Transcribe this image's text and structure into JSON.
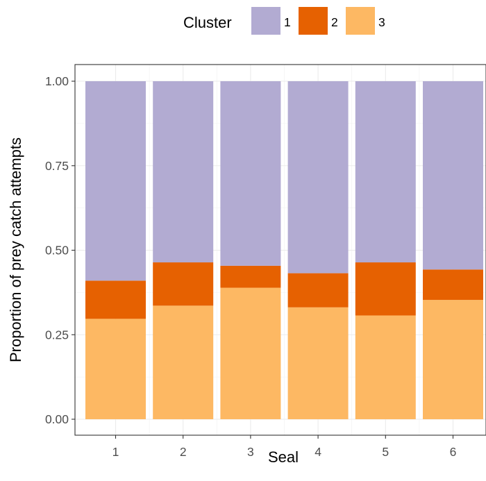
{
  "chart_data": {
    "type": "bar",
    "stacked": true,
    "categories": [
      "1",
      "2",
      "3",
      "4",
      "5",
      "6"
    ],
    "series": [
      {
        "name": "3",
        "color": "#fdb863",
        "values": [
          0.297,
          0.336,
          0.389,
          0.331,
          0.307,
          0.353
        ]
      },
      {
        "name": "2",
        "color": "#e66101",
        "values": [
          0.113,
          0.128,
          0.065,
          0.101,
          0.157,
          0.09
        ]
      },
      {
        "name": "1",
        "color": "#b2abd2",
        "values": [
          0.59,
          0.536,
          0.546,
          0.568,
          0.536,
          0.557
        ]
      }
    ],
    "title": "",
    "xlabel": "Seal",
    "ylabel": "Proportion of prey catch attempts",
    "ylim": [
      0,
      1
    ],
    "yticks": [
      "0.00",
      "0.25",
      "0.50",
      "0.75",
      "1.00"
    ],
    "ytick_values": [
      0,
      0.25,
      0.5,
      0.75,
      1.0
    ],
    "grid": true,
    "legend": {
      "title": "Cluster",
      "placement": "top",
      "entries": [
        {
          "label": "1",
          "color": "#b2abd2"
        },
        {
          "label": "2",
          "color": "#e66101"
        },
        {
          "label": "3",
          "color": "#fdb863"
        }
      ]
    }
  }
}
